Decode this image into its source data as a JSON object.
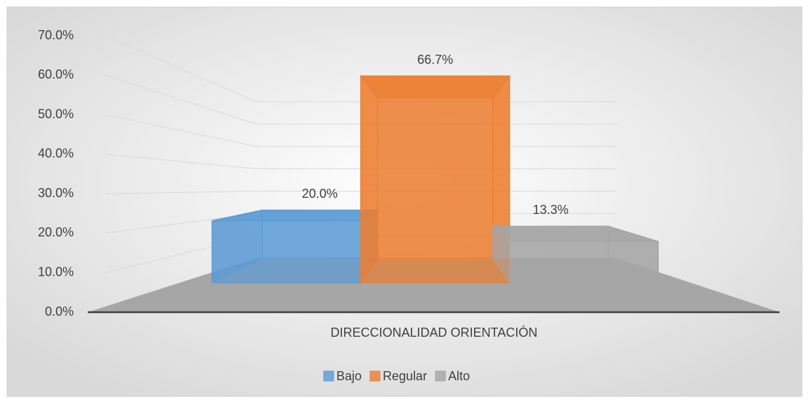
{
  "chart_data": {
    "type": "bar3d",
    "categories": [
      "DIRECCIONALIDAD ORIENTACIÓN"
    ],
    "series": [
      {
        "name": "Bajo",
        "color": "#5b9bd5",
        "values": [
          20.0
        ],
        "value_labels": [
          "20.0%"
        ]
      },
      {
        "name": "Regular",
        "color": "#ed7d31",
        "values": [
          66.7
        ],
        "value_labels": [
          "66.7%"
        ]
      },
      {
        "name": "Alto",
        "color": "#a5a5a5",
        "values": [
          13.3
        ],
        "value_labels": [
          "13.3%"
        ]
      }
    ],
    "ylim": [
      0,
      70
    ],
    "yticks": [
      {
        "value": 0,
        "label": "0.0%"
      },
      {
        "value": 10,
        "label": "10.0%"
      },
      {
        "value": 20,
        "label": "20.0%"
      },
      {
        "value": 30,
        "label": "30.0%"
      },
      {
        "value": 40,
        "label": "40.0%"
      },
      {
        "value": 50,
        "label": "50.0%"
      },
      {
        "value": 60,
        "label": "60.0%"
      },
      {
        "value": 70,
        "label": "70.0%"
      }
    ],
    "grid": true,
    "legend": "bottom"
  }
}
